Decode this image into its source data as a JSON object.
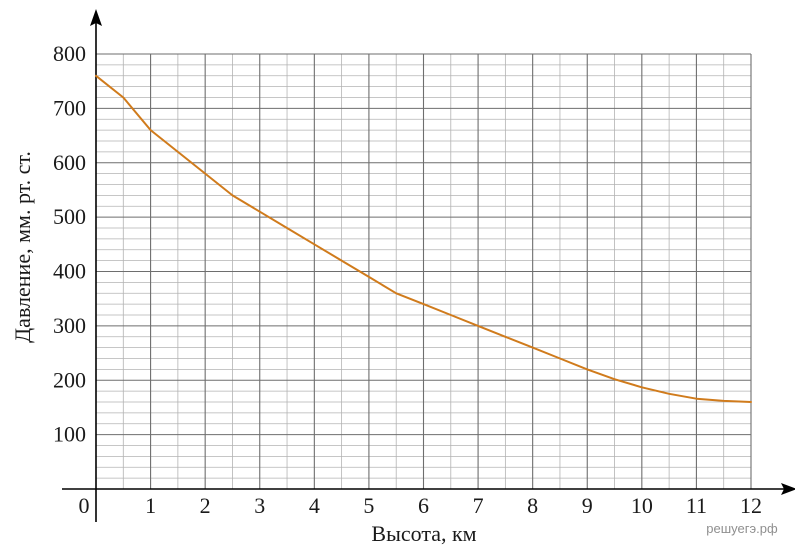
{
  "chart_data": {
    "type": "line",
    "xlabel": "Высота, км",
    "ylabel": "Давление, мм. рт. ст.",
    "xlim": [
      0,
      12
    ],
    "ylim": [
      0,
      800
    ],
    "x_ticks": [
      "1",
      "2",
      "3",
      "4",
      "5",
      "6",
      "7",
      "8",
      "9",
      "10",
      "11",
      "12"
    ],
    "y_ticks": [
      "100",
      "200",
      "300",
      "400",
      "500",
      "600",
      "700",
      "800"
    ],
    "origin_label": "0",
    "grid": true,
    "line_color": "#d07b1c",
    "series": [
      {
        "x": [
          0,
          0.5,
          1,
          1.5,
          2,
          2.5,
          3,
          3.5,
          4,
          4.5,
          5,
          5.5,
          6,
          6.5,
          7,
          7.5,
          8,
          8.5,
          9,
          9.5,
          10,
          10.5,
          11,
          11.5,
          12
        ],
        "values": [
          760,
          720,
          660,
          620,
          580,
          540,
          510,
          480,
          450,
          420,
          390,
          360,
          340,
          320,
          300,
          280,
          260,
          240,
          220,
          202,
          187,
          175,
          166,
          162,
          160
        ]
      }
    ]
  },
  "watermark": "решуегэ.рф"
}
